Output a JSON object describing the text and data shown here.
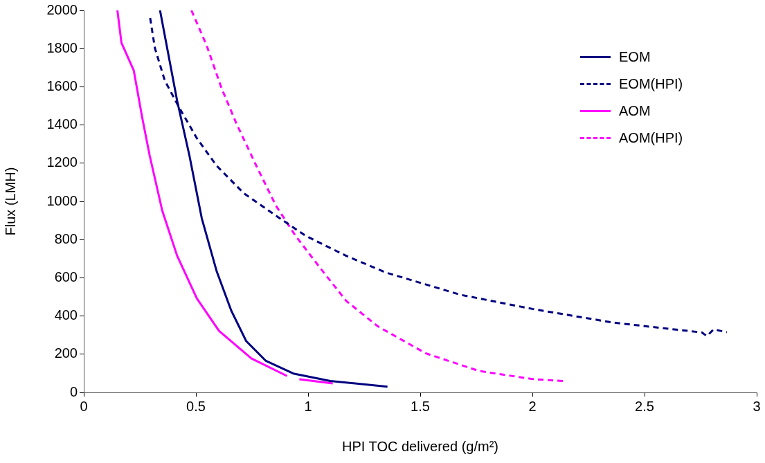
{
  "chart_data": {
    "type": "line",
    "xlabel": "HPI TOC delivered (g/m²)",
    "ylabel": "Flux (LMH)",
    "xlim": [
      0,
      3
    ],
    "xticks": [
      0,
      0.5,
      1,
      1.5,
      2,
      2.5,
      3
    ],
    "ylim": [
      0,
      2000
    ],
    "yticks": [
      0,
      200,
      400,
      600,
      800,
      1000,
      1200,
      1400,
      1600,
      1800,
      2000
    ],
    "grid": false,
    "legend": "top right",
    "marker": "none",
    "series": [
      {
        "name": "EOM",
        "color": "#000080",
        "line_style": "solid",
        "x": [
          0.34,
          0.416,
          0.471,
          0.526,
          0.592,
          0.658,
          0.724,
          0.812,
          0.934,
          1.099,
          1.354
        ],
        "values": [
          2000,
          1528,
          1240,
          912,
          636,
          427,
          269,
          165,
          99,
          60,
          30
        ]
      },
      {
        "name": "EOM(HPI)",
        "color": "#000080",
        "line_style": "dashed",
        "x": [
          0.296,
          0.317,
          0.361,
          0.427,
          0.504,
          0.592,
          0.713,
          0.857,
          0.989,
          1.17,
          1.348,
          1.68,
          2.0,
          2.357,
          2.654,
          2.755,
          2.778,
          2.808,
          2.867
        ],
        "values": [
          1960,
          1803,
          1633,
          1488,
          1331,
          1187,
          1043,
          925,
          820,
          715,
          627,
          511,
          437,
          366,
          327,
          314,
          295,
          330,
          315
        ]
      },
      {
        "name": "AOM",
        "color": "#ff00ff",
        "line_style": "solid",
        "x": [
          0.15,
          0.168,
          0.223,
          0.261,
          0.294,
          0.35,
          0.416,
          0.504,
          0.603,
          0.747,
          0.906,
          0.93,
          0.961,
          1.11
        ],
        "values": [
          2000,
          1830,
          1685,
          1436,
          1239,
          951,
          716,
          492,
          322,
          178,
          86,
          null,
          69,
          47
        ]
      },
      {
        "name": "AOM(HPI)",
        "color": "#ff00ff",
        "line_style": "dashed",
        "x": [
          0.48,
          0.548,
          0.614,
          0.68,
          0.769,
          0.857,
          0.944,
          1.055,
          1.17,
          1.312,
          1.526,
          1.763,
          2.0,
          2.143
        ],
        "values": [
          2000,
          1816,
          1593,
          1409,
          1187,
          977,
          820,
          650,
          479,
          345,
          204,
          112,
          70,
          59
        ]
      }
    ]
  }
}
